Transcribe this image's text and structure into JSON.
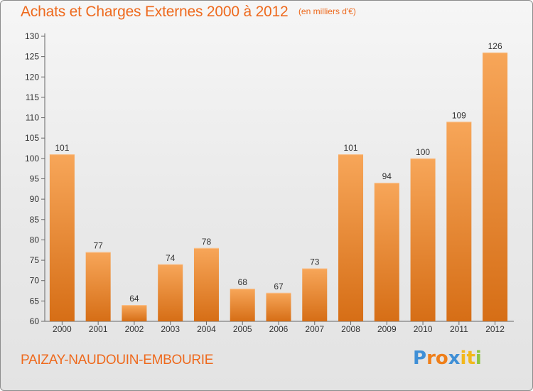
{
  "chart_data": {
    "type": "bar",
    "title": "Achats et Charges Externes 2000 à 2012",
    "unit_label": "(en milliers d'€)",
    "categories": [
      "2000",
      "2001",
      "2002",
      "2003",
      "2004",
      "2005",
      "2006",
      "2007",
      "2008",
      "2009",
      "2010",
      "2011",
      "2012"
    ],
    "values": [
      101,
      77,
      64,
      74,
      78,
      68,
      67,
      73,
      101,
      94,
      100,
      109,
      126
    ],
    "ylim": [
      60,
      130
    ],
    "yticks": [
      60,
      65,
      70,
      75,
      80,
      85,
      90,
      95,
      100,
      105,
      110,
      115,
      120,
      125,
      130
    ],
    "grid": false,
    "bar_color_top": "#f7a659",
    "bar_color_bottom": "#d66e16"
  },
  "commune": "PAIZAY-NAUDOUIN-EMBOURIE",
  "logo": {
    "text": "Proxiti",
    "letter_colors": [
      "#3f8fd6",
      "#ef7f1a",
      "#ef7f1a",
      "#3f8fd6",
      "#f2b81c",
      "#f2b81c",
      "#8dc63f"
    ]
  },
  "colors": {
    "accent": "#ee6a1e",
    "axis": "#666666",
    "text": "#333333"
  }
}
